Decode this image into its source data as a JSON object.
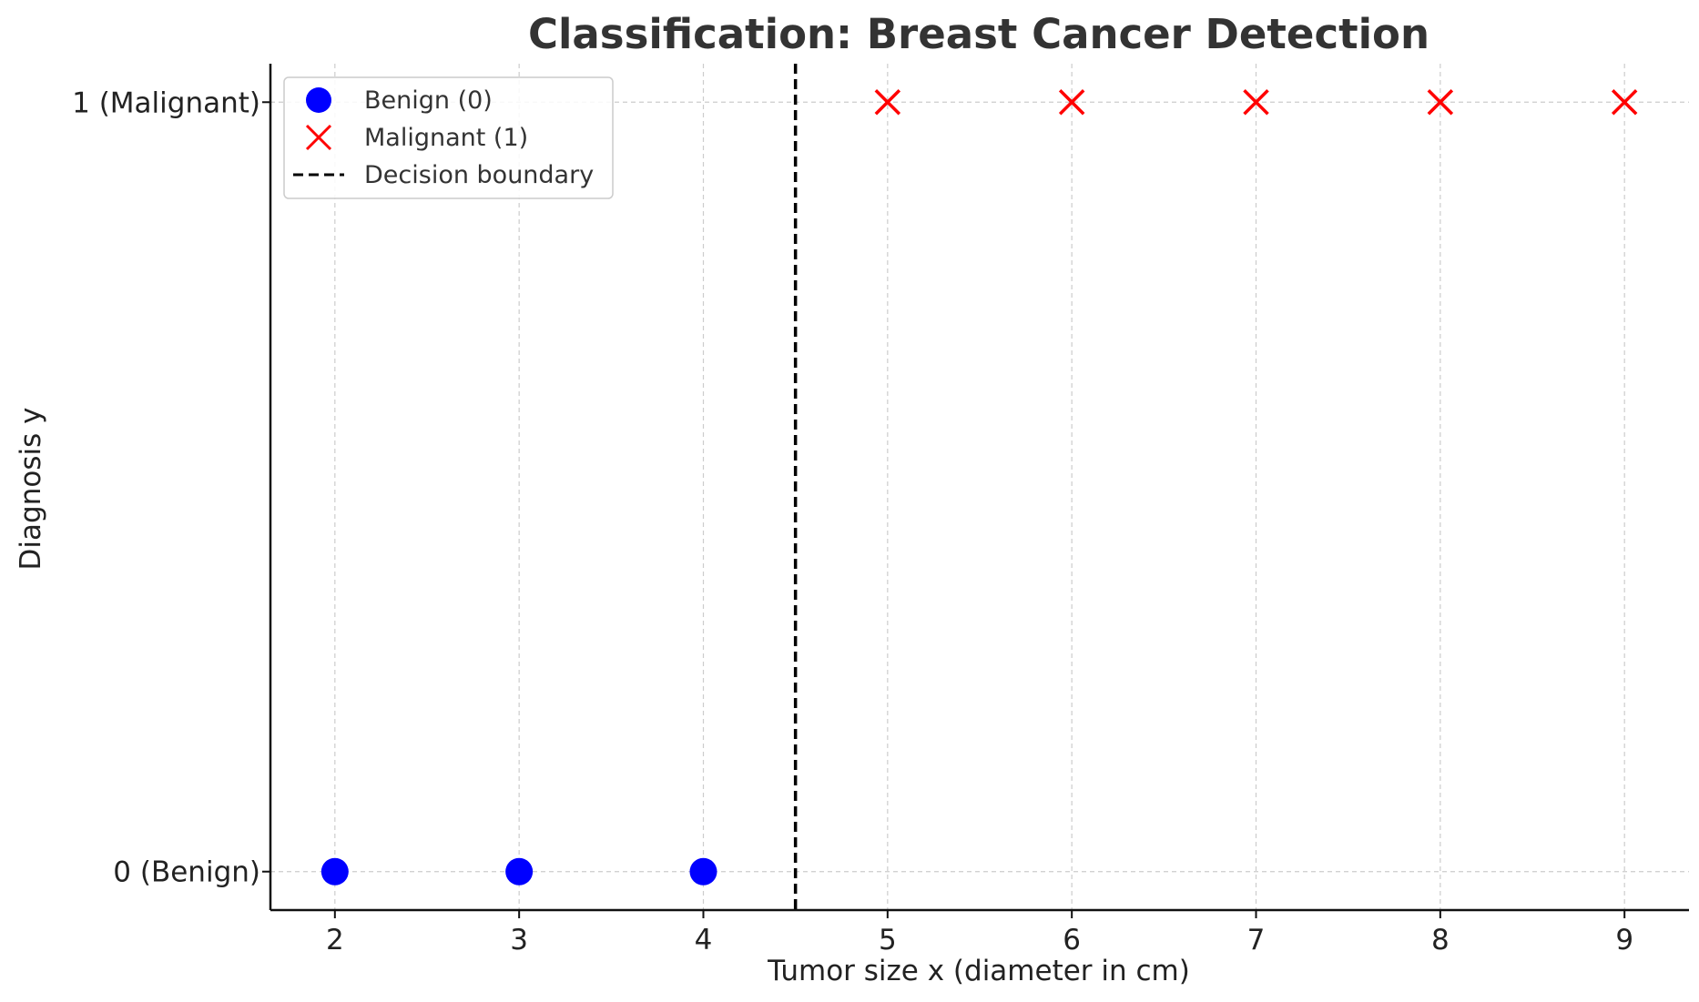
{
  "chart_data": {
    "type": "scatter",
    "title": "Classification: Breast Cancer Detection",
    "xlabel": "Tumor size x (diameter in cm)",
    "ylabel": "Diagnosis y",
    "xlim": [
      1.65,
      9.35
    ],
    "ylim": [
      -0.05,
      1.05
    ],
    "xticks": [
      2,
      3,
      4,
      5,
      6,
      7,
      8,
      9
    ],
    "yticks": [
      {
        "value": 0,
        "label": "0 (Benign)"
      },
      {
        "value": 1,
        "label": "1 (Malignant)"
      }
    ],
    "grid": true,
    "legend_position": "top-left",
    "series": [
      {
        "name": "Benign (0)",
        "marker": "circle",
        "color": "#0000ff",
        "points": [
          {
            "x": 2,
            "y": 0
          },
          {
            "x": 3,
            "y": 0
          },
          {
            "x": 4,
            "y": 0
          }
        ]
      },
      {
        "name": "Malignant (1)",
        "marker": "x",
        "color": "#ff0000",
        "points": [
          {
            "x": 5,
            "y": 1
          },
          {
            "x": 6,
            "y": 1
          },
          {
            "x": 7,
            "y": 1
          },
          {
            "x": 8,
            "y": 1
          },
          {
            "x": 9,
            "y": 1
          }
        ]
      }
    ],
    "decision_boundary": {
      "name": "Decision boundary",
      "x": 4.5,
      "style": "dashed",
      "color": "#000000"
    }
  }
}
